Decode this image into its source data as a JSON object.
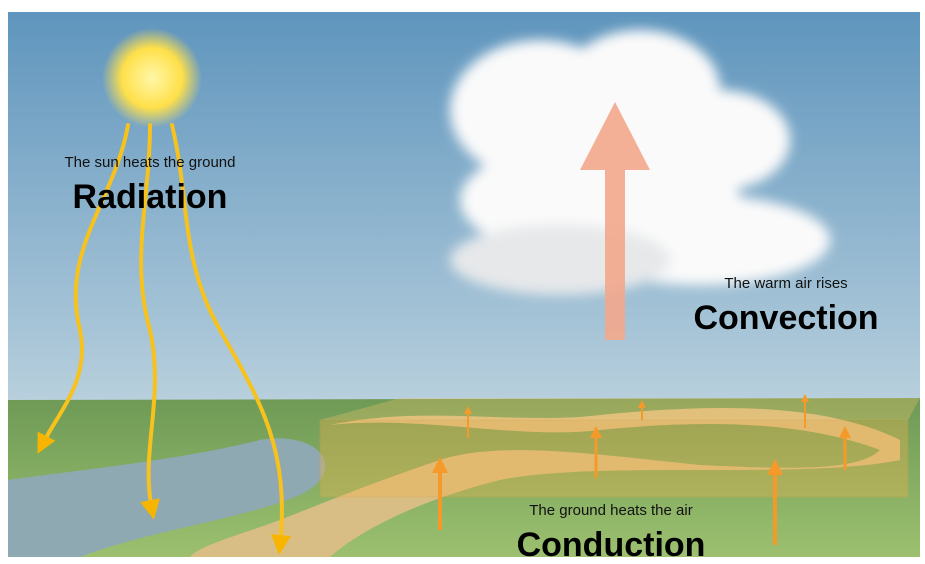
{
  "radiation": {
    "caption": "The sun heats the ground",
    "title": "Radiation"
  },
  "convection": {
    "caption": "The warm air rises",
    "title": "Convection"
  },
  "conduction": {
    "caption": "The ground heats the air",
    "title": "Conduction"
  }
}
